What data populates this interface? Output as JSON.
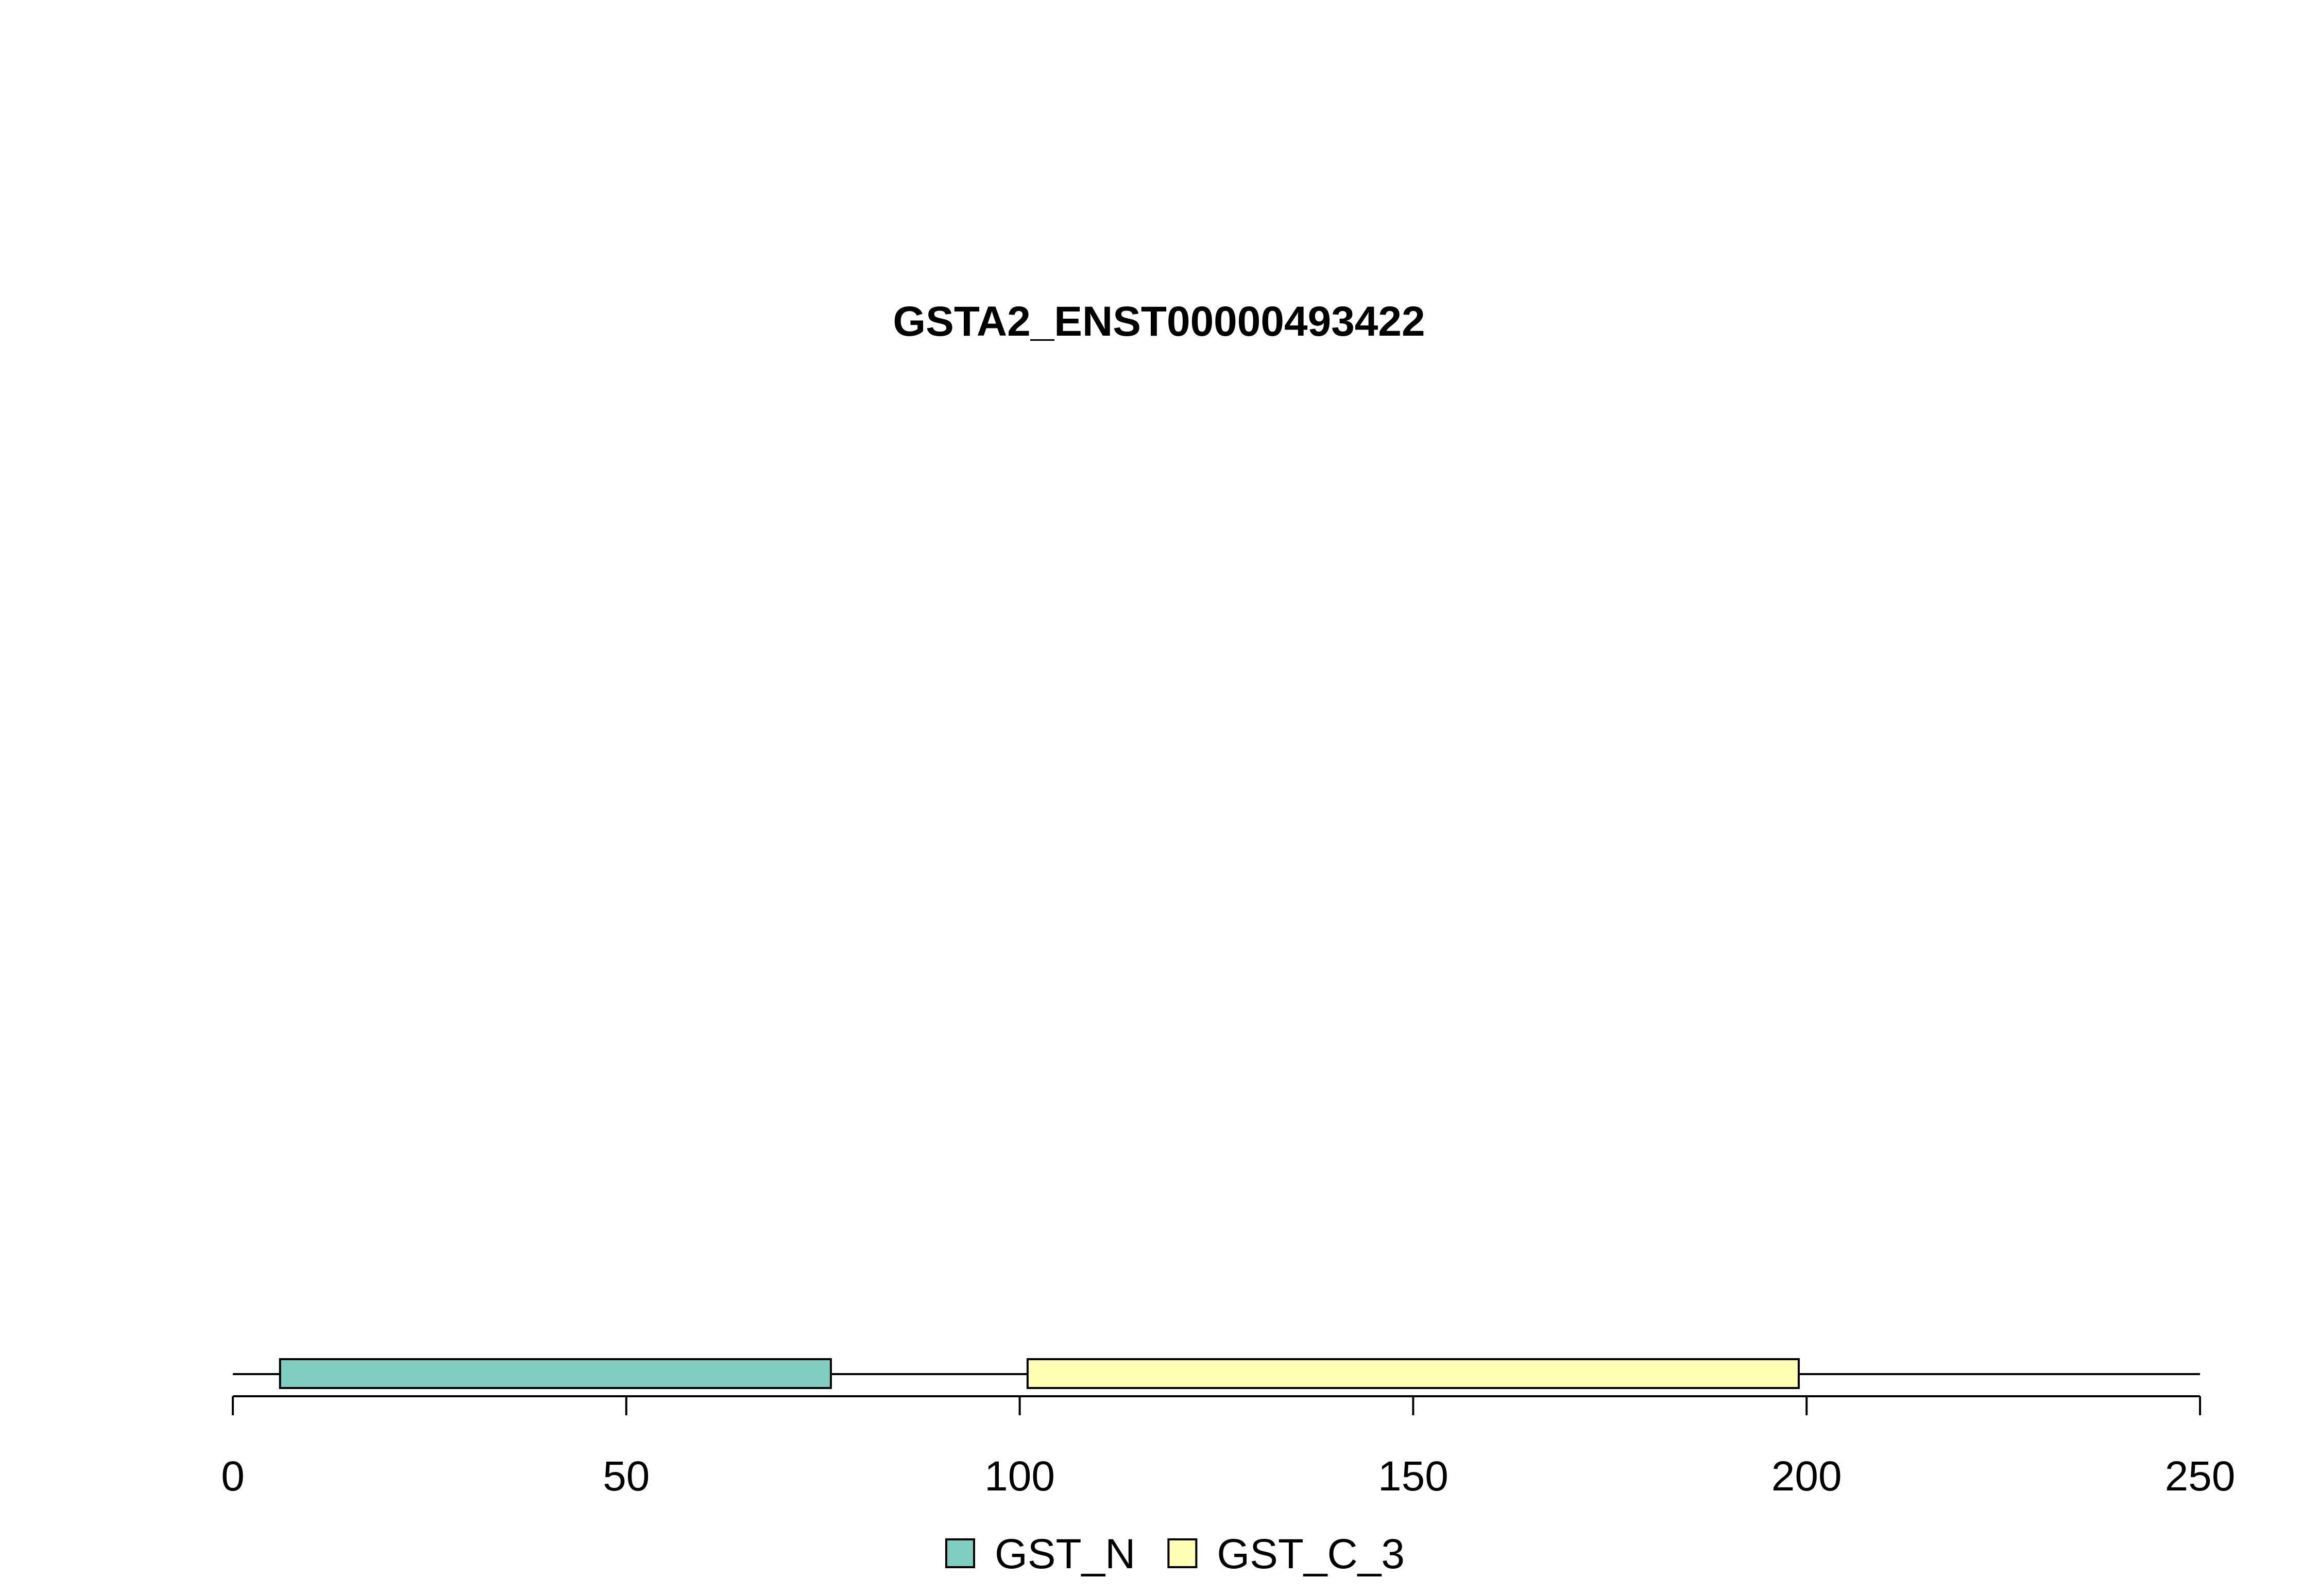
{
  "chart_data": {
    "type": "bar",
    "title": "GSTA2_ENST00000493422",
    "protein_length": 250,
    "xlim": [
      0,
      250
    ],
    "x_ticks": [
      0,
      50,
      100,
      150,
      200,
      250
    ],
    "domains": [
      {
        "name": "GST_N",
        "start": 6,
        "end": 76,
        "color": "#80CDC1"
      },
      {
        "name": "GST_C_3",
        "start": 101,
        "end": 199,
        "color": "#FFFFB3"
      }
    ],
    "legend": {
      "position": "bottom-center",
      "entries": [
        {
          "label": "GST_N",
          "color": "#80CDC1"
        },
        {
          "label": "GST_C_3",
          "color": "#FFFFB3"
        }
      ]
    }
  }
}
